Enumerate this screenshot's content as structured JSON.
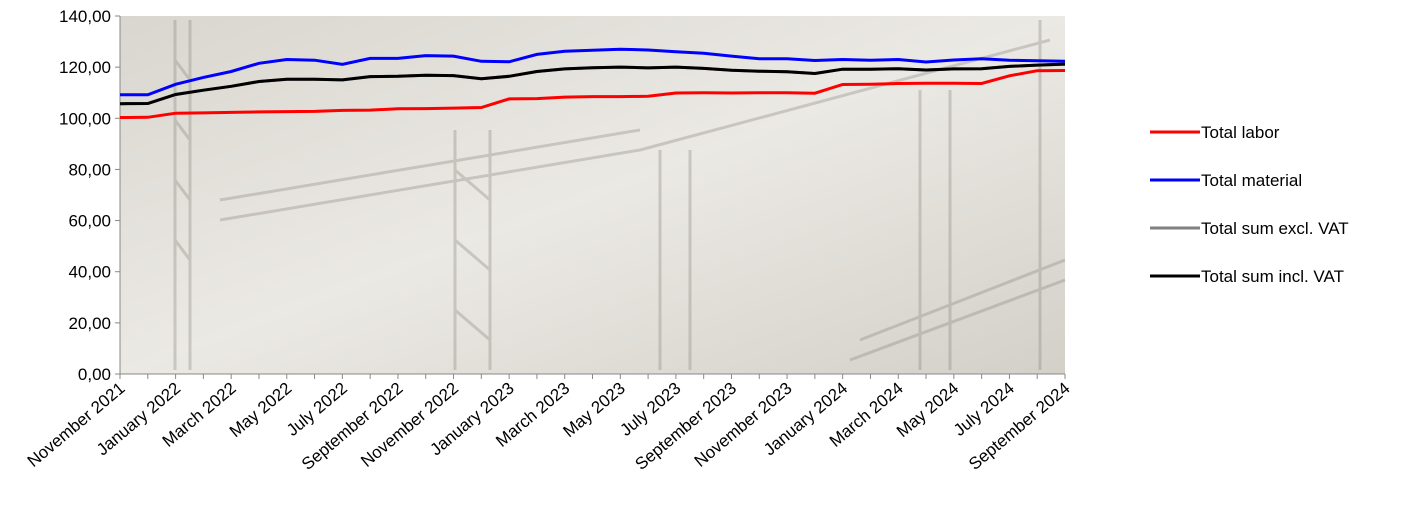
{
  "chart_data": {
    "type": "line",
    "categories": [
      "November 2021",
      null,
      "January 2022",
      null,
      "March 2022",
      null,
      "May 2022",
      null,
      "July 2022",
      null,
      "September 2022",
      null,
      "November 2022",
      null,
      "January 2023",
      null,
      "March 2023",
      null,
      "May 2023",
      null,
      "July 2023",
      null,
      "September 2023",
      null,
      "November 2023",
      null,
      "January 2024",
      null,
      "March 2024",
      null,
      "May 2024",
      null,
      "July 2024",
      null,
      "September 2024"
    ],
    "series": [
      {
        "name": "Total labor",
        "color": "#ff0000",
        "values": [
          100.3,
          100.4,
          102,
          102.1,
          102.3,
          102.5,
          102.6,
          102.7,
          103.1,
          103.2,
          103.7,
          103.8,
          104,
          104.2,
          107.6,
          107.7,
          108.3,
          108.5,
          108.5,
          108.6,
          109.9,
          110,
          109.9,
          110,
          110,
          109.8,
          113.2,
          113.3,
          113.6,
          113.7,
          113.7,
          113.6,
          116.6,
          118.6,
          118.7
        ]
      },
      {
        "name": "Total material",
        "color": "#0000ff",
        "values": [
          109.2,
          109.2,
          113.3,
          116,
          118.3,
          121.5,
          123,
          122.7,
          121.1,
          123.4,
          123.4,
          124.5,
          124.3,
          122.3,
          122.1,
          125,
          126.2,
          126.6,
          127,
          126.7,
          126,
          125.4,
          124.3,
          123.3,
          123.3,
          122.6,
          123,
          122.7,
          123,
          122,
          122.8,
          123.3,
          122.7,
          122.5,
          122.3
        ]
      },
      {
        "name": "Total sum excl. VAT",
        "color": "#808080",
        "values": [
          105.7,
          105.8,
          109.3,
          111,
          112.5,
          114.4,
          115.3,
          115.3,
          115,
          116.3,
          116.4,
          116.8,
          116.7,
          115.5,
          116.4,
          118.3,
          119.3,
          119.8,
          120,
          119.7,
          120,
          119.5,
          118.8,
          118.4,
          118.2,
          117.5,
          119.2,
          119.2,
          119.4,
          118.9,
          119.3,
          119.4,
          120.3,
          120.8,
          121.2
        ]
      },
      {
        "name": "Total sum incl. VAT",
        "color": "#000000",
        "values": [
          105.7,
          105.8,
          109.3,
          111,
          112.5,
          114.4,
          115.3,
          115.3,
          115,
          116.3,
          116.4,
          116.8,
          116.7,
          115.5,
          116.4,
          118.3,
          119.3,
          119.8,
          120,
          119.7,
          120,
          119.5,
          118.8,
          118.4,
          118.2,
          117.5,
          119.2,
          119.2,
          119.4,
          118.9,
          119.3,
          119.4,
          120.3,
          120.8,
          121.2
        ]
      }
    ],
    "ylim": [
      0,
      140
    ],
    "yticks": [
      {
        "value": 0,
        "label": "0,00"
      },
      {
        "value": 20,
        "label": "20,00"
      },
      {
        "value": 40,
        "label": "40,00"
      },
      {
        "value": 60,
        "label": "60,00"
      },
      {
        "value": 80,
        "label": "80,00"
      },
      {
        "value": 100,
        "label": "100,00"
      },
      {
        "value": 120,
        "label": "120,00"
      },
      {
        "value": 140,
        "label": "140,00"
      }
    ],
    "legend": "right"
  }
}
